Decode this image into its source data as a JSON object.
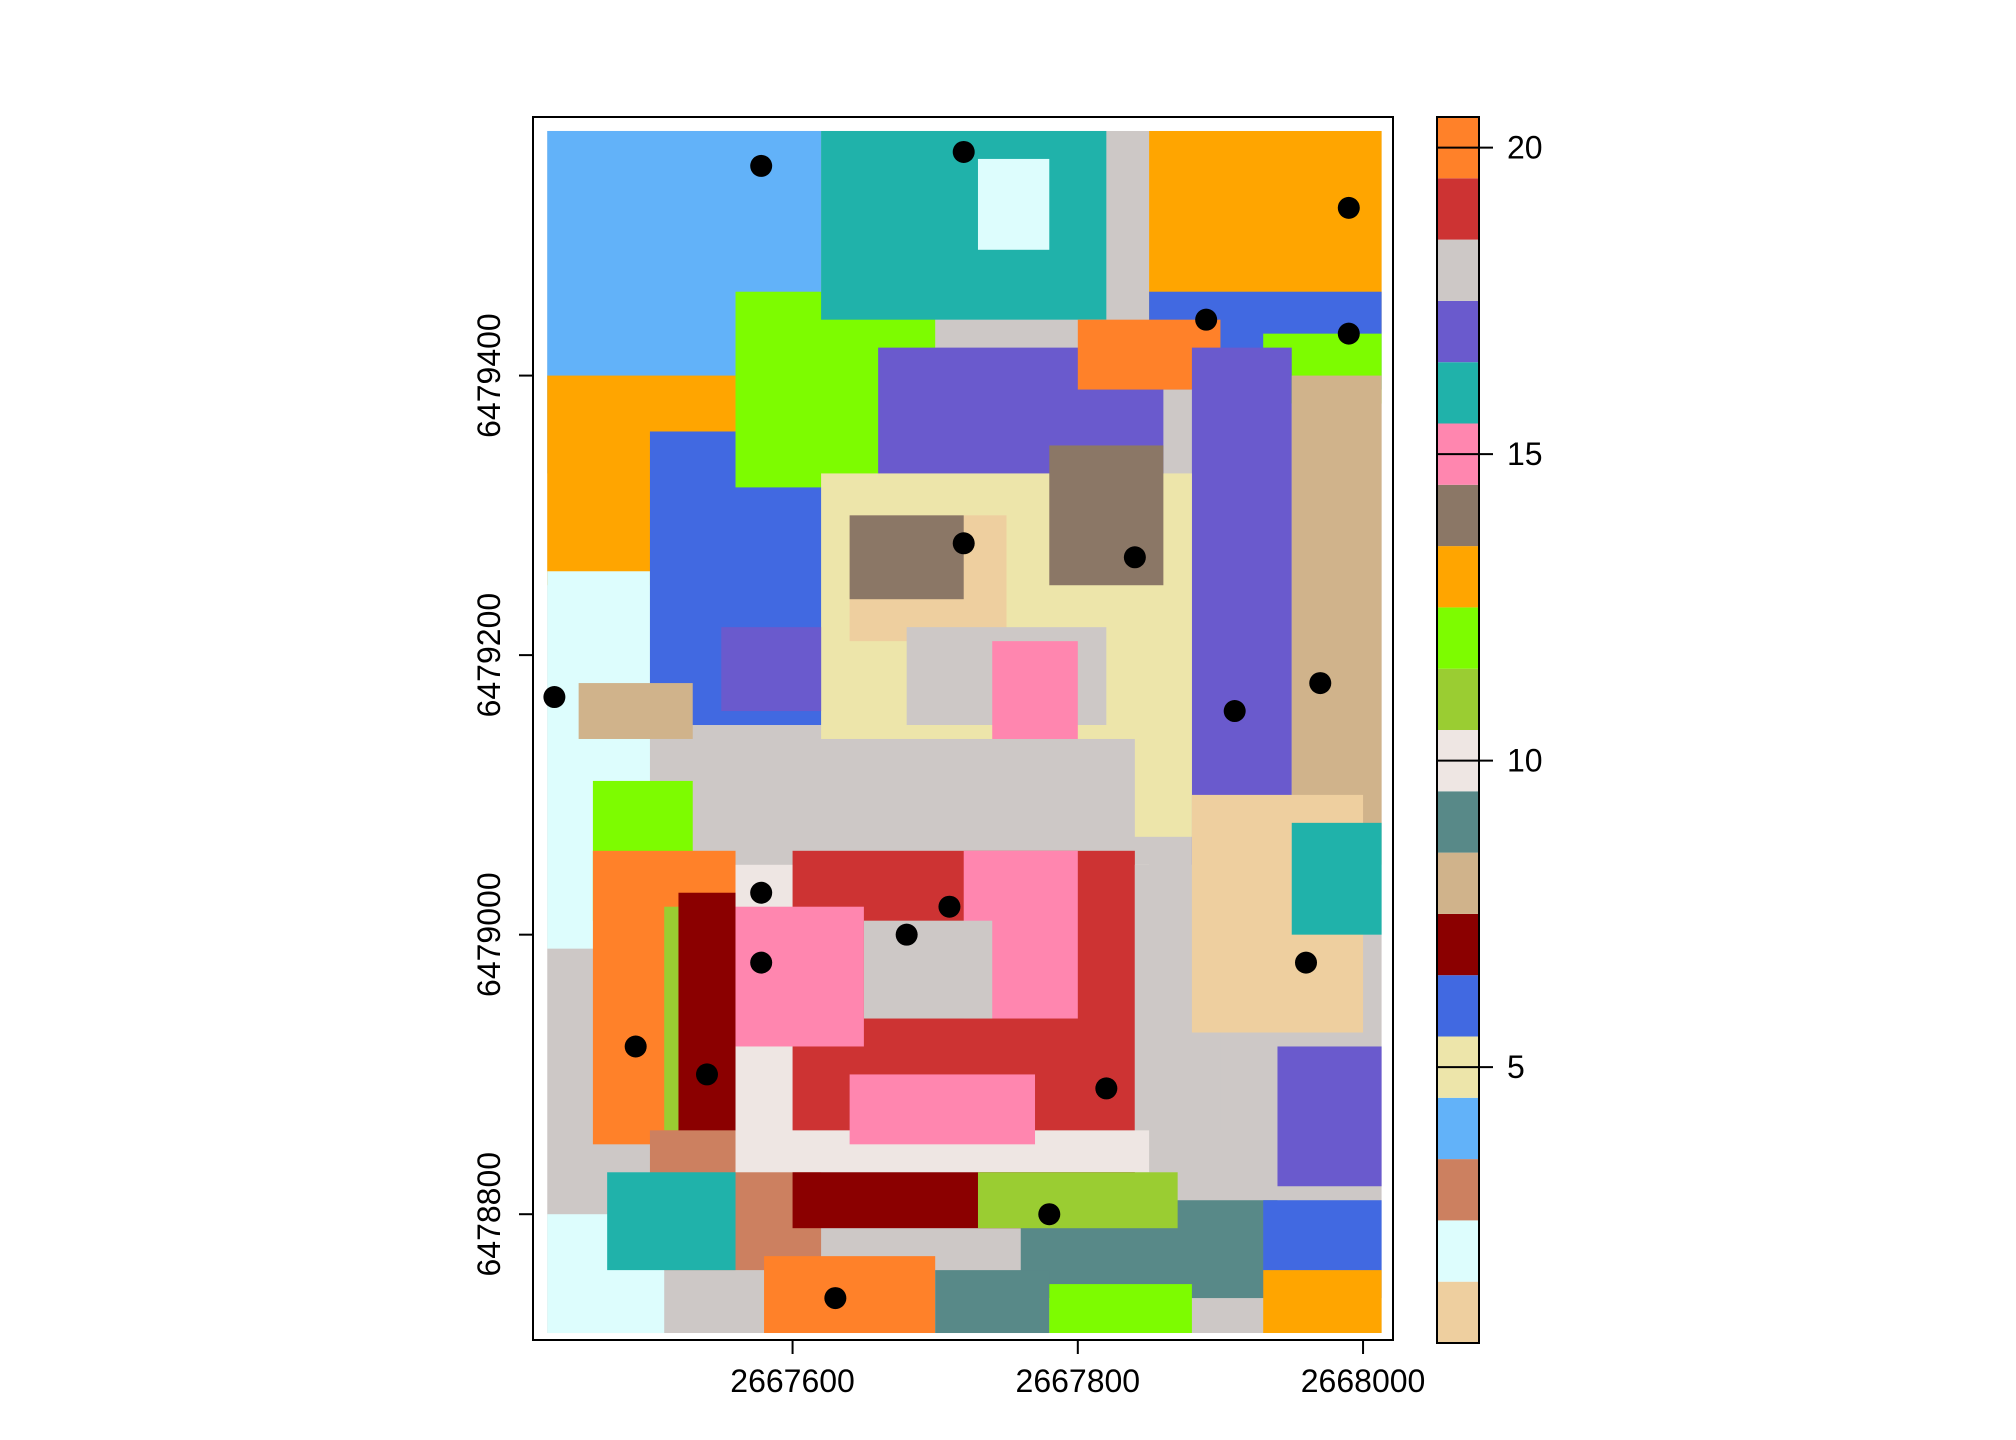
{
  "chart_data": {
    "type": "heatmap",
    "title": "",
    "xlabel": "",
    "ylabel": "",
    "xlim": [
      2667418,
      2668021
    ],
    "ylim": [
      6478710,
      6479585
    ],
    "raster_extent": {
      "x": [
        2667428,
        2668013
      ],
      "y": [
        6478715,
        6479575
      ]
    },
    "x_ticks": [
      2667600,
      2667800,
      2668000
    ],
    "x_tick_labels": [
      "2667600",
      "2667800",
      "2668000"
    ],
    "y_ticks": [
      6478800,
      6479000,
      6479200,
      6479400
    ],
    "y_tick_labels": [
      "6478800",
      "6479000",
      "6479200",
      "6479400"
    ],
    "legend": {
      "placement": "right",
      "range": [
        1,
        20
      ],
      "ticks": [
        5,
        10,
        15,
        20
      ],
      "tick_labels": [
        "5",
        "10",
        "15",
        "20"
      ],
      "classes": [
        {
          "value": 1,
          "color": "#EECF9F"
        },
        {
          "value": 2,
          "color": "#DDFDFD"
        },
        {
          "value": 3,
          "color": "#CC8060"
        },
        {
          "value": 4,
          "color": "#62B2F9"
        },
        {
          "value": 5,
          "color": "#EDE5AA"
        },
        {
          "value": 6,
          "color": "#4169E1"
        },
        {
          "value": 7,
          "color": "#8B0000"
        },
        {
          "value": 8,
          "color": "#D0B38B"
        },
        {
          "value": 9,
          "color": "#588988"
        },
        {
          "value": 10,
          "color": "#EEE6E3"
        },
        {
          "value": 11,
          "color": "#9ACD32"
        },
        {
          "value": 12,
          "color": "#7DFC00"
        },
        {
          "value": 13,
          "color": "#FFA500"
        },
        {
          "value": 14,
          "color": "#8B7766"
        },
        {
          "value": 15,
          "color": "#FF86AF"
        },
        {
          "value": 16,
          "color": "#20B2AA"
        },
        {
          "value": 17,
          "color": "#6A5ACD"
        },
        {
          "value": 18,
          "color": "#CDC8C6"
        },
        {
          "value": 19,
          "color": "#CD3333"
        },
        {
          "value": 20,
          "color": "#FF8129"
        }
      ]
    },
    "regions": [
      {
        "value": 4,
        "x": [
          2667428,
          2667620
        ],
        "y": [
          6479330,
          6479575
        ]
      },
      {
        "value": 13,
        "x": [
          2667428,
          2667560
        ],
        "y": [
          6479250,
          6479400
        ]
      },
      {
        "value": 2,
        "x": [
          2667428,
          2667500
        ],
        "y": [
          6478990,
          6479260
        ]
      },
      {
        "value": 6,
        "x": [
          2667500,
          2667640
        ],
        "y": [
          6479150,
          6479360
        ]
      },
      {
        "value": 12,
        "x": [
          2667560,
          2667700
        ],
        "y": [
          6479320,
          6479460
        ]
      },
      {
        "value": 16,
        "x": [
          2667620,
          2667820
        ],
        "y": [
          6479440,
          6479575
        ]
      },
      {
        "value": 2,
        "x": [
          2667730,
          2667780
        ],
        "y": [
          6479490,
          6479555
        ]
      },
      {
        "value": 13,
        "x": [
          2667850,
          2668013
        ],
        "y": [
          6479430,
          6479575
        ]
      },
      {
        "value": 6,
        "x": [
          2667850,
          2668013
        ],
        "y": [
          6479390,
          6479460
        ]
      },
      {
        "value": 17,
        "x": [
          2667660,
          2667860
        ],
        "y": [
          6479280,
          6479420
        ]
      },
      {
        "value": 20,
        "x": [
          2667800,
          2667900
        ],
        "y": [
          6479390,
          6479440
        ]
      },
      {
        "value": 12,
        "x": [
          2667930,
          2668013
        ],
        "y": [
          6479380,
          6479430
        ]
      },
      {
        "value": 17,
        "x": [
          2667880,
          2667950
        ],
        "y": [
          6479050,
          6479420
        ]
      },
      {
        "value": 8,
        "x": [
          2667950,
          2668013
        ],
        "y": [
          6479050,
          6479400
        ]
      },
      {
        "value": 5,
        "x": [
          2667620,
          2667880
        ],
        "y": [
          6479070,
          6479330
        ]
      },
      {
        "value": 1,
        "x": [
          2667640,
          2667750
        ],
        "y": [
          6479210,
          6479300
        ]
      },
      {
        "value": 14,
        "x": [
          2667640,
          2667720
        ],
        "y": [
          6479240,
          6479300
        ]
      },
      {
        "value": 14,
        "x": [
          2667780,
          2667860
        ],
        "y": [
          6479250,
          6479350
        ]
      },
      {
        "value": 18,
        "x": [
          2667680,
          2667820
        ],
        "y": [
          6479150,
          6479220
        ]
      },
      {
        "value": 15,
        "x": [
          2667740,
          2667800
        ],
        "y": [
          6479100,
          6479210
        ]
      },
      {
        "value": 8,
        "x": [
          2667450,
          2667530
        ],
        "y": [
          6479140,
          6479180
        ]
      },
      {
        "value": 17,
        "x": [
          2667550,
          2667620
        ],
        "y": [
          6479160,
          6479220
        ]
      },
      {
        "value": 12,
        "x": [
          2667460,
          2667530
        ],
        "y": [
          6479010,
          6479110
        ]
      },
      {
        "value": 18,
        "x": [
          2667600,
          2667840
        ],
        "y": [
          6479060,
          6479140
        ]
      },
      {
        "value": 20,
        "x": [
          2667460,
          2667560
        ],
        "y": [
          6478850,
          6479060
        ]
      },
      {
        "value": 11,
        "x": [
          2667510,
          2667560
        ],
        "y": [
          6478860,
          6479020
        ]
      },
      {
        "value": 7,
        "x": [
          2667520,
          2667600
        ],
        "y": [
          6478820,
          6479030
        ]
      },
      {
        "value": 3,
        "x": [
          2667500,
          2667620
        ],
        "y": [
          6478760,
          6478860
        ]
      },
      {
        "value": 10,
        "x": [
          2667560,
          2667850
        ],
        "y": [
          6478830,
          6479050
        ]
      },
      {
        "value": 19,
        "x": [
          2667600,
          2667840
        ],
        "y": [
          6478860,
          6479060
        ]
      },
      {
        "value": 15,
        "x": [
          2667560,
          2667650
        ],
        "y": [
          6478920,
          6479020
        ]
      },
      {
        "value": 15,
        "x": [
          2667720,
          2667800
        ],
        "y": [
          6478940,
          6479060
        ]
      },
      {
        "value": 15,
        "x": [
          2667640,
          2667770
        ],
        "y": [
          6478850,
          6478900
        ]
      },
      {
        "value": 18,
        "x": [
          2667650,
          2667740
        ],
        "y": [
          6478940,
          6479010
        ]
      },
      {
        "value": 7,
        "x": [
          2667600,
          2667840
        ],
        "y": [
          6478790,
          6478830
        ]
      },
      {
        "value": 18,
        "x": [
          2667840,
          2667900
        ],
        "y": [
          6478860,
          6479050
        ]
      },
      {
        "value": 1,
        "x": [
          2667880,
          2668000
        ],
        "y": [
          6478930,
          6479100
        ]
      },
      {
        "value": 16,
        "x": [
          2667950,
          2668013
        ],
        "y": [
          6479000,
          6479080
        ]
      },
      {
        "value": 17,
        "x": [
          2667940,
          2668013
        ],
        "y": [
          6478820,
          6478920
        ]
      },
      {
        "value": 9,
        "x": [
          2667760,
          2667940
        ],
        "y": [
          6478740,
          6478810
        ]
      },
      {
        "value": 11,
        "x": [
          2667730,
          2667870
        ],
        "y": [
          6478790,
          6478830
        ]
      },
      {
        "value": 6,
        "x": [
          2667930,
          2668013
        ],
        "y": [
          6478740,
          6478810
        ]
      },
      {
        "value": 13,
        "x": [
          2667930,
          2668013
        ],
        "y": [
          6478715,
          6478760
        ]
      },
      {
        "value": 2,
        "x": [
          2667428,
          2667510
        ],
        "y": [
          6478715,
          6478800
        ]
      },
      {
        "value": 16,
        "x": [
          2667470,
          2667560
        ],
        "y": [
          6478760,
          6478830
        ]
      },
      {
        "value": 20,
        "x": [
          2667580,
          2667700
        ],
        "y": [
          6478715,
          6478770
        ]
      },
      {
        "value": 9,
        "x": [
          2667700,
          2667780
        ],
        "y": [
          6478715,
          6478760
        ]
      },
      {
        "value": 12,
        "x": [
          2667780,
          2667880
        ],
        "y": [
          6478715,
          6478750
        ]
      }
    ],
    "points": [
      {
        "x": 2667578,
        "y": 6479550
      },
      {
        "x": 2667720,
        "y": 6479560
      },
      {
        "x": 2667990,
        "y": 6479520
      },
      {
        "x": 2667890,
        "y": 6479440
      },
      {
        "x": 2667990,
        "y": 6479430
      },
      {
        "x": 2667720,
        "y": 6479280
      },
      {
        "x": 2667840,
        "y": 6479270
      },
      {
        "x": 2667433,
        "y": 6479170
      },
      {
        "x": 2667970,
        "y": 6479180
      },
      {
        "x": 2667910,
        "y": 6479160
      },
      {
        "x": 2667578,
        "y": 6479030
      },
      {
        "x": 2667710,
        "y": 6479020
      },
      {
        "x": 2667680,
        "y": 6479000
      },
      {
        "x": 2667578,
        "y": 6478980
      },
      {
        "x": 2667960,
        "y": 6478980
      },
      {
        "x": 2667490,
        "y": 6478920
      },
      {
        "x": 2667540,
        "y": 6478900
      },
      {
        "x": 2667820,
        "y": 6478890
      },
      {
        "x": 2667780,
        "y": 6478800
      },
      {
        "x": 2667630,
        "y": 6478740
      }
    ]
  }
}
